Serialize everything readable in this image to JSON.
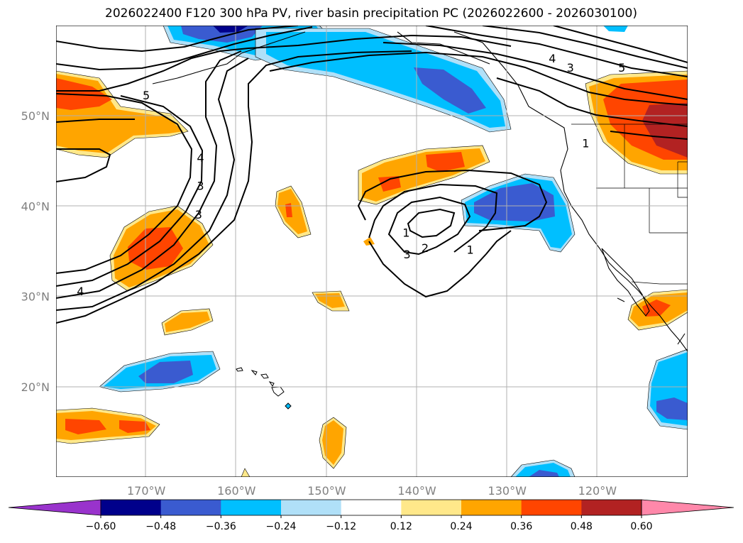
{
  "title": "2026022400 F120 300 hPa PV, river basin precipitation PC (2026022600 - 2026030100)",
  "map": {
    "lon_range": [
      -180,
      -110
    ],
    "lat_range": [
      10,
      60
    ],
    "lon_ticks": [
      {
        "lon": -170,
        "label": "170°W"
      },
      {
        "lon": -160,
        "label": "160°W"
      },
      {
        "lon": -150,
        "label": "150°W"
      },
      {
        "lon": -140,
        "label": "140°W"
      },
      {
        "lon": -130,
        "label": "130°W"
      },
      {
        "lon": -120,
        "label": "120°W"
      }
    ],
    "lat_ticks": [
      {
        "lat": 20,
        "label": "20°N"
      },
      {
        "lat": 30,
        "label": "30°N"
      },
      {
        "lat": 40,
        "label": "40°N"
      },
      {
        "lat": 50,
        "label": "50°N"
      }
    ],
    "gridlines": true
  },
  "pv_contour_labels": [
    {
      "text": "5",
      "lon": -170,
      "lat": 52.2
    },
    {
      "text": "4",
      "lon": -164,
      "lat": 45.3
    },
    {
      "text": "3",
      "lon": -164,
      "lat": 42.2
    },
    {
      "text": "1",
      "lon": -141.2,
      "lat": 37.0
    },
    {
      "text": "2",
      "lon": -139.1,
      "lat": 35.3
    },
    {
      "text": "3",
      "lon": -141.1,
      "lat": 34.6
    },
    {
      "text": "1",
      "lon": -134.1,
      "lat": 35.1
    },
    {
      "text": "4",
      "lon": -125.0,
      "lat": 56.3
    },
    {
      "text": "3",
      "lon": -123.0,
      "lat": 55.3
    },
    {
      "text": "5",
      "lon": -117.3,
      "lat": 55.3
    },
    {
      "text": "1",
      "lon": -121.3,
      "lat": 46.9
    },
    {
      "text": "4",
      "lon": -177.3,
      "lat": 30.5
    },
    {
      "text": "3",
      "lon": -164.2,
      "lat": 39.0
    }
  ],
  "colorbar": {
    "levels": [
      -0.6,
      -0.48,
      -0.36,
      -0.24,
      -0.12,
      0.12,
      0.24,
      0.36,
      0.48,
      0.6
    ],
    "tick_labels": [
      "−0.60",
      "−0.48",
      "−0.36",
      "−0.24",
      "−0.12",
      "0.12",
      "0.24",
      "0.36",
      "0.48",
      "0.60"
    ],
    "colors": [
      "#9933cc",
      "#00008b",
      "#3a5bd0",
      "#00bfff",
      "#b0e0f8",
      "#ffffff",
      "#ffe88a",
      "#ffa500",
      "#ff4500",
      "#b22222",
      "#ff88aa"
    ],
    "extend": "both"
  }
}
